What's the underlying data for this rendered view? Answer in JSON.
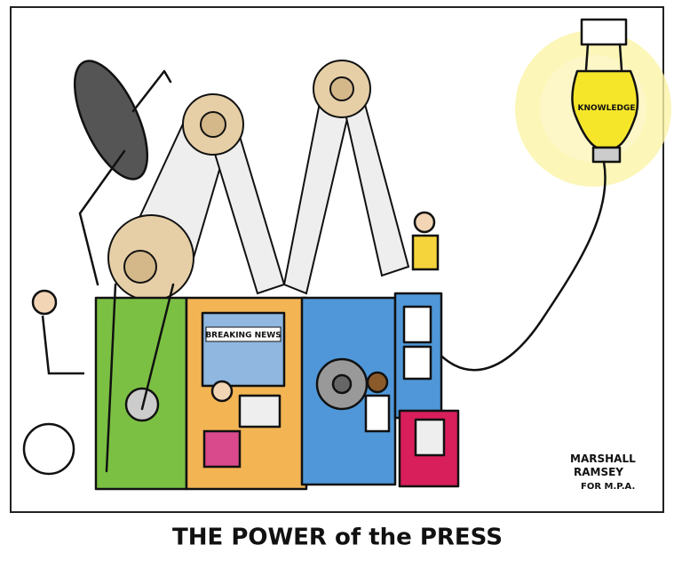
{
  "bulb_label": "KNOWLEDGE",
  "screen_label": "BREAKING NEWS",
  "signature": [
    "MARSHALL",
    "RAMSEY",
    "FOR M.P.A."
  ],
  "caption": "THE POWER of the PRESS"
}
